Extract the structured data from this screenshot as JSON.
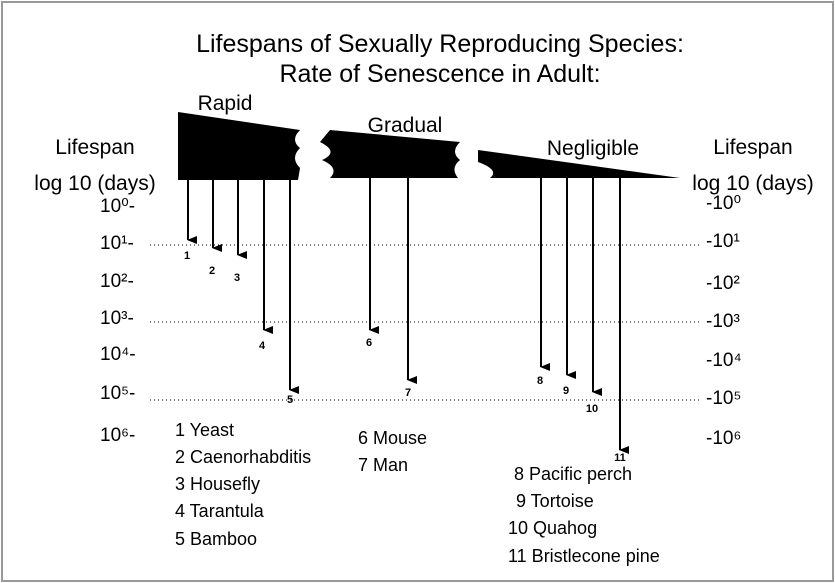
{
  "title": {
    "line1": "Lifespans of Sexually Reproducing Species:",
    "line2": "Rate of Senescence in Adult:"
  },
  "rates": [
    "Rapid",
    "Gradual",
    "Negligible"
  ],
  "left_axis": {
    "label1": "Lifespan",
    "label2": "log 10 (days)",
    "ticks": [
      "10⁰-",
      "10¹-",
      "10²-",
      "10³-",
      "10⁴-",
      "10⁵-",
      "10⁶-"
    ]
  },
  "right_axis": {
    "label1": "Lifespan",
    "label2": "log 10 (days)",
    "ticks": [
      "-10⁰",
      "-10¹",
      "-10²",
      "-10³",
      "-10⁴",
      "-10⁵",
      "-10⁶"
    ]
  },
  "arrows": [
    "1",
    "2",
    "3",
    "4",
    "5",
    "6",
    "7",
    "8",
    "9",
    "10",
    "11"
  ],
  "legend": [
    "1 Yeast",
    "2 Caenorhabditis",
    "3 Housefly",
    "4 Tarantula",
    "5 Bamboo",
    "6 Mouse",
    "7 Man",
    "8 Pacific perch",
    "9 Tortoise",
    "10 Quahog",
    "11 Bristlecone pine"
  ]
}
